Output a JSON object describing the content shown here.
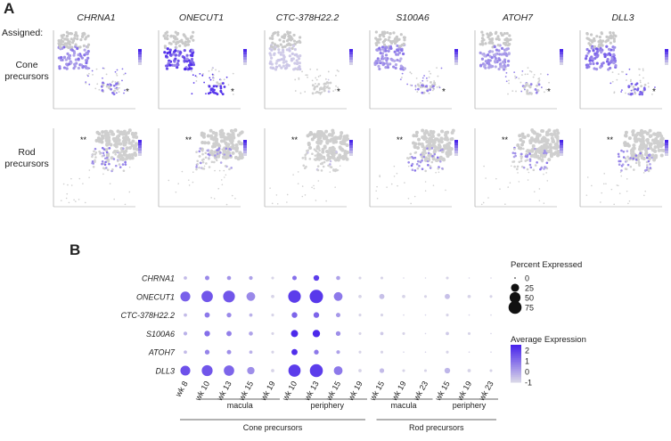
{
  "panel_a": {
    "letter": "A",
    "assigned_label": "Assigned:",
    "genes": [
      "CHRNA1",
      "ONECUT1",
      "CTC-378H22.2",
      "S100A6",
      "ATOH7",
      "DLL3"
    ],
    "rows": [
      {
        "label_line1": "Cone",
        "label_line2": "precursors",
        "marker": "*",
        "intensities": [
          0.55,
          0.9,
          0.08,
          0.5,
          0.45,
          0.65
        ]
      },
      {
        "label_line1": "Rod",
        "label_line2": "precursors",
        "marker": "**",
        "intensities": [
          0.5,
          0.45,
          0.15,
          0.55,
          0.5,
          0.5
        ]
      }
    ]
  },
  "panel_b": {
    "letter": "B",
    "group_labels": {
      "macula_1": "macula",
      "periphery_1": "periphery",
      "macula_2": "macula",
      "periphery_2": "periphery",
      "cone": "Cone precursors",
      "rod": "Rod precursors"
    },
    "legend": {
      "percent_title": "Percent Expressed",
      "percent_values": [
        0,
        25,
        50,
        75
      ],
      "avg_title": "Average Expression",
      "avg_ticks": [
        "2",
        "1",
        "0",
        "-1"
      ]
    }
  },
  "chart_data": {
    "type": "dotplot",
    "genes": [
      "CHRNA1",
      "ONECUT1",
      "CTC-378H22.2",
      "S100A6",
      "ATOH7",
      "DLL3"
    ],
    "categories": [
      "wk 8",
      "wk 10",
      "wk 13",
      "wk 15",
      "wk 19",
      "wk 10",
      "wk 13",
      "wk 15",
      "wk 19",
      "wk 15",
      "wk 19",
      "wk 23",
      "wk 15",
      "wk 19",
      "wk 23"
    ],
    "percent_expressed": [
      [
        2,
        5,
        4,
        3,
        1,
        5,
        10,
        4,
        1,
        1,
        0,
        0,
        1,
        0,
        0
      ],
      [
        40,
        55,
        60,
        30,
        2,
        70,
        80,
        30,
        2,
        8,
        2,
        1,
        8,
        2,
        1
      ],
      [
        2,
        8,
        6,
        2,
        1,
        10,
        10,
        5,
        1,
        1,
        0,
        0,
        1,
        0,
        0
      ],
      [
        3,
        10,
        8,
        4,
        1,
        18,
        20,
        6,
        1,
        2,
        1,
        0,
        2,
        1,
        0
      ],
      [
        2,
        6,
        5,
        2,
        1,
        12,
        6,
        3,
        1,
        1,
        0,
        0,
        1,
        0,
        0
      ],
      [
        40,
        50,
        45,
        20,
        2,
        65,
        75,
        30,
        2,
        6,
        1,
        1,
        10,
        2,
        1
      ]
    ],
    "average_expression": [
      [
        -0.5,
        0.5,
        0.3,
        0,
        -1,
        1,
        2,
        0,
        -1,
        -1,
        -1,
        -1,
        -1,
        -1,
        -1
      ],
      [
        1.3,
        1.5,
        1.5,
        0.5,
        -1,
        2,
        2.1,
        0.8,
        -1,
        -0.6,
        -1,
        -1,
        -0.6,
        -1,
        -1
      ],
      [
        -0.5,
        0.8,
        0.5,
        -0.3,
        -1,
        1.2,
        1.2,
        0.2,
        -1,
        -1,
        -1,
        -1,
        -1,
        -1,
        -1
      ],
      [
        -0.3,
        1,
        0.7,
        0,
        -1,
        2.4,
        2.4,
        0.4,
        -1,
        -0.8,
        -1,
        -1,
        -0.8,
        -1,
        -1
      ],
      [
        -0.5,
        0.6,
        0.4,
        -0.3,
        -1,
        2.3,
        0.8,
        0,
        -1,
        -1,
        -1,
        -1,
        -1,
        -1,
        -1
      ],
      [
        1.6,
        1.5,
        1.2,
        0.4,
        -1,
        2,
        2,
        0.8,
        -1,
        -0.5,
        -1,
        -1,
        -0.4,
        -1,
        -1
      ]
    ],
    "size_legend": {
      "title": "Percent Expressed",
      "values": [
        0,
        25,
        50,
        75
      ]
    },
    "color_legend": {
      "title": "Average Expression",
      "range": [
        -1,
        2.5
      ],
      "ticks": [
        2,
        1,
        0,
        -1
      ]
    }
  }
}
